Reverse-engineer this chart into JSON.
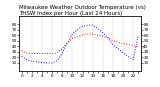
{
  "title": "Milwaukee Weather Outdoor Temperature (vs) THSW Index per Hour (Last 24 Hours)",
  "title_fontsize": 4.0,
  "background_color": "#ffffff",
  "grid_color": "#bbbbbb",
  "hours": [
    0,
    1,
    2,
    3,
    4,
    5,
    6,
    7,
    8,
    9,
    10,
    11,
    12,
    13,
    14,
    15,
    16,
    17,
    18,
    19,
    20,
    21,
    22,
    23
  ],
  "temp": [
    32,
    28,
    27,
    27,
    27,
    27,
    27,
    28,
    36,
    46,
    54,
    57,
    60,
    62,
    62,
    60,
    58,
    55,
    50,
    47,
    45,
    43,
    41,
    39
  ],
  "thsw": [
    22,
    16,
    13,
    12,
    11,
    10,
    10,
    14,
    28,
    46,
    62,
    70,
    76,
    78,
    78,
    72,
    64,
    56,
    42,
    36,
    28,
    22,
    16,
    60
  ],
  "temp_color": "#ff0000",
  "thsw_color": "#0000ff",
  "ylim": [
    -5,
    95
  ],
  "tick_fontsize": 3.0,
  "yticks": [
    10,
    20,
    30,
    40,
    50,
    60,
    70,
    80
  ],
  "ytick_labels": [
    "10",
    "20",
    "30",
    "40",
    "50",
    "60",
    "70",
    "80"
  ],
  "line_width": 0.7,
  "dot_size": 1.2
}
